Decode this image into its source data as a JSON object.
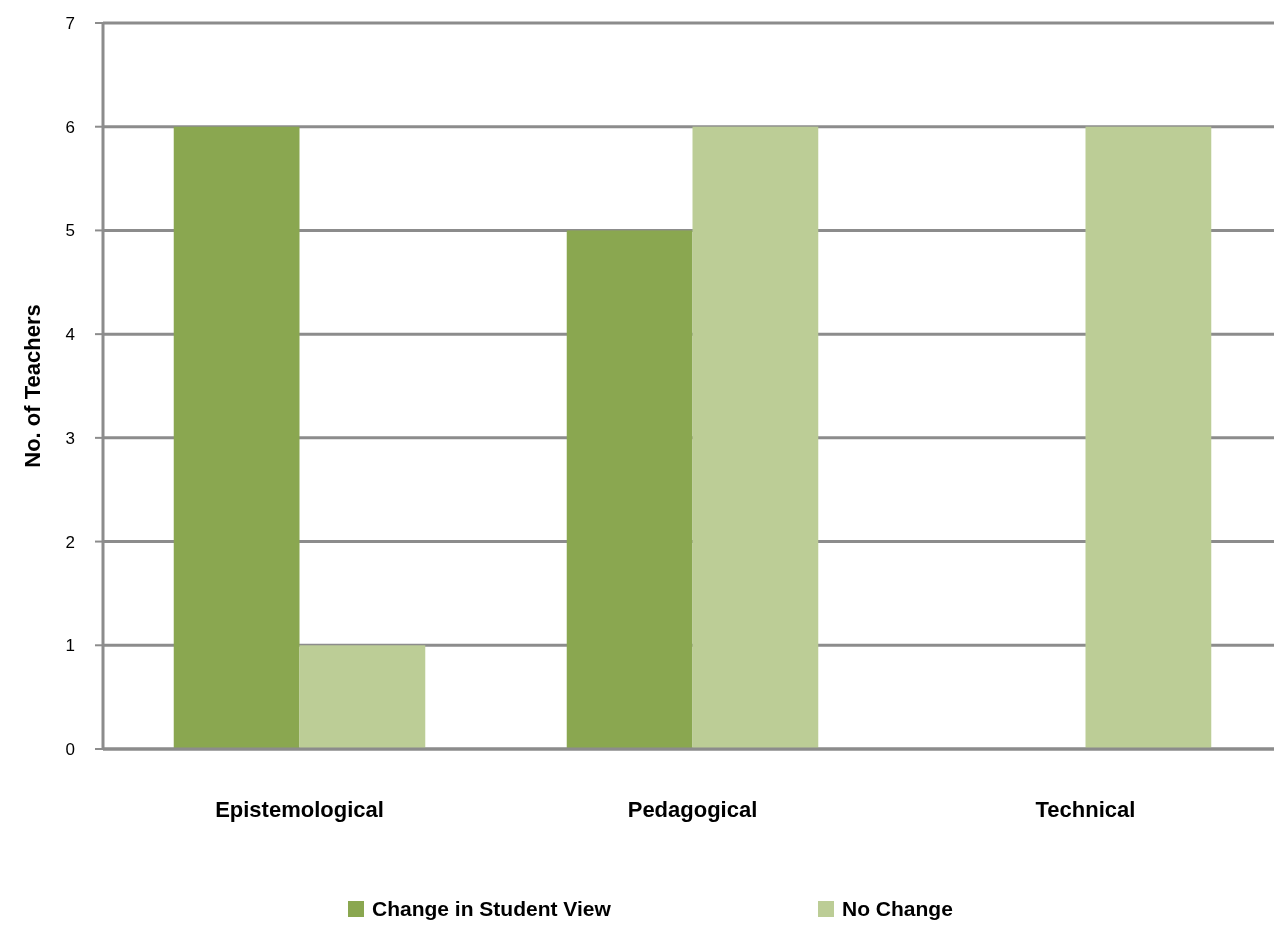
{
  "chart_data": {
    "type": "bar",
    "ylabel": "No. of Teachers",
    "categories": [
      "Epistemological",
      "Pedagogical",
      "Technical"
    ],
    "series": [
      {
        "name": "Change in Student View",
        "color": "#8aa750",
        "values": [
          6,
          5,
          0
        ]
      },
      {
        "name": "No Change",
        "color": "#bccd96",
        "values": [
          1,
          6,
          6
        ]
      }
    ],
    "ylim": [
      0,
      7
    ],
    "yticks": [
      0,
      1,
      2,
      3,
      4,
      5,
      6,
      7
    ],
    "grid": "y",
    "legend": "bottom"
  }
}
